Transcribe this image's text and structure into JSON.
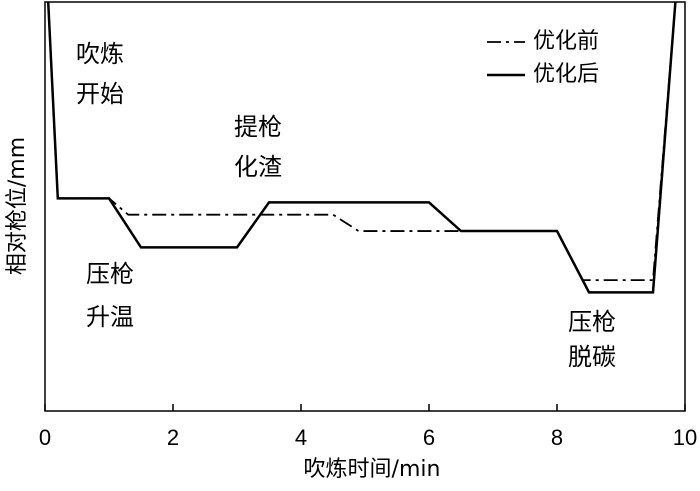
{
  "chart_data": {
    "type": "line",
    "xlabel": "吹炼时间/min",
    "ylabel": "相对枪位/mm",
    "xlim": [
      0,
      10
    ],
    "xticks": [
      0,
      2,
      4,
      6,
      8,
      10
    ],
    "ylim": [
      0,
      100
    ],
    "legend": "upper right",
    "series": [
      {
        "name": "优化前",
        "color": "#000000",
        "style": "dashdot",
        "x": [
          0.05,
          0.2,
          1.0,
          1.3,
          4.5,
          4.9,
          8.0,
          8.4,
          9.5,
          9.85
        ],
        "values": [
          100,
          52,
          52,
          48,
          48,
          44,
          44,
          32,
          32,
          100
        ]
      },
      {
        "name": "优化后",
        "color": "#000000",
        "style": "solid",
        "x": [
          0.05,
          0.2,
          1.0,
          1.5,
          3.0,
          3.5,
          6.0,
          6.5,
          8.0,
          8.5,
          9.5,
          9.85
        ],
        "values": [
          100,
          52,
          52,
          40,
          40,
          51,
          51,
          44,
          44,
          29,
          29,
          100
        ]
      }
    ],
    "annotations": [
      {
        "text": [
          "吹炼",
          "开始"
        ]
      },
      {
        "text": [
          "提枪",
          "化渣"
        ]
      },
      {
        "text": [
          "压枪",
          "升温"
        ]
      },
      {
        "text": [
          "压枪",
          "脱碳"
        ]
      }
    ]
  }
}
